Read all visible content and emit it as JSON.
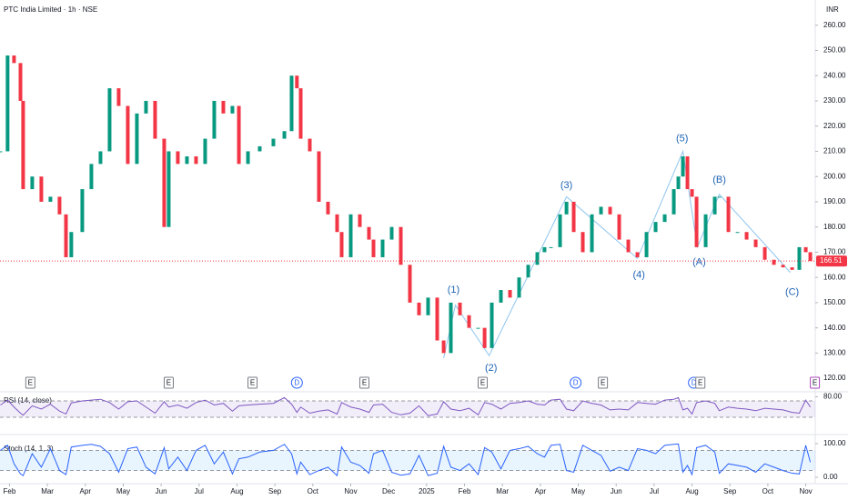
{
  "chart_data": [
    {
      "type": "candle",
      "title": "PTC India Limited · 1h · NSE",
      "currency": "INR",
      "up_color": "#089981",
      "down_color": "#f23645",
      "x": [
        -0.24,
        -0.05,
        0.12,
        0.29,
        0.36,
        0.6,
        0.84,
        1.08,
        1.32,
        1.49,
        1.63,
        1.92,
        2.16,
        2.4,
        2.64,
        2.88,
        3.12,
        3.36,
        3.6,
        3.84,
        4.08,
        4.2,
        4.44,
        4.68,
        4.92,
        5.16,
        5.4,
        5.64,
        5.88,
        6.05,
        6.29,
        6.6,
        6.96,
        7.25,
        7.44,
        7.58,
        7.68,
        7.92,
        8.16,
        8.4,
        8.64,
        8.76,
        9,
        9.24,
        9.48,
        9.6,
        9.84,
        10.08,
        10.32,
        10.56,
        10.8,
        11.04,
        11.28,
        11.45,
        11.64,
        11.88,
        12.12,
        12.36,
        12.53,
        12.72,
        12.96,
        13.2,
        13.44,
        13.68,
        13.92,
        14.11,
        14.28,
        14.52,
        14.69,
        14.88,
        15.12,
        15.36,
        15.6,
        15.84,
        16.08,
        16.32,
        16.56,
        16.8,
        17.04,
        17.28,
        17.52,
        17.64,
        17.76,
        17.88,
        18,
        18.12,
        18.36,
        18.6,
        18.72,
        18.96,
        19.2,
        19.44,
        19.68,
        19.92,
        20.16,
        20.4,
        20.64,
        20.83,
        21,
        21.12
      ],
      "values": [
        210,
        248,
        245,
        230,
        195,
        200,
        190,
        192,
        185,
        168,
        178,
        195,
        205,
        210,
        235,
        228,
        205,
        225,
        230,
        215,
        180,
        210,
        205,
        208,
        205,
        215,
        230,
        225,
        228,
        205,
        210,
        212,
        215,
        218,
        240,
        235,
        215,
        210,
        190,
        185,
        178,
        168,
        185,
        180,
        175,
        168,
        175,
        180,
        165,
        150,
        145,
        152,
        135,
        130,
        150,
        145,
        140,
        140,
        132,
        150,
        155,
        152,
        160,
        165,
        170,
        172,
        172,
        185,
        190,
        178,
        170,
        185,
        188,
        185,
        175,
        170,
        168,
        178,
        182,
        185,
        195,
        200,
        208,
        195,
        192,
        172,
        185,
        192,
        192,
        178,
        178,
        175,
        172,
        167,
        165,
        164,
        163,
        172,
        170,
        166.51
      ],
      "last": 166.51,
      "xlim": [
        -0.25,
        21.25
      ],
      "xticks": [
        {
          "value": 0,
          "label": "Feb"
        },
        {
          "value": 1,
          "label": "Mar"
        },
        {
          "value": 2,
          "label": "Apr"
        },
        {
          "value": 3,
          "label": "May"
        },
        {
          "value": 4,
          "label": "Jun"
        },
        {
          "value": 5,
          "label": "Jul"
        },
        {
          "value": 6,
          "label": "Aug"
        },
        {
          "value": 7,
          "label": "Sep"
        },
        {
          "value": 8,
          "label": "Oct"
        },
        {
          "value": 9,
          "label": "Nov"
        },
        {
          "value": 10,
          "label": "Dec"
        },
        {
          "value": 11,
          "label": "2025"
        },
        {
          "value": 12,
          "label": "Feb"
        },
        {
          "value": 13,
          "label": "Mar"
        },
        {
          "value": 14,
          "label": "Apr"
        },
        {
          "value": 15,
          "label": "May"
        },
        {
          "value": 16,
          "label": "Jun"
        },
        {
          "value": 17,
          "label": "Jul"
        },
        {
          "value": 18,
          "label": "Aug"
        },
        {
          "value": 19,
          "label": "Sep"
        },
        {
          "value": 20,
          "label": "Oct"
        },
        {
          "value": 21,
          "label": "Nov"
        }
      ],
      "ylim": [
        115,
        270
      ],
      "yticks": [
        {
          "value": 120,
          "label": "120.00"
        },
        {
          "value": 130,
          "label": "130.00"
        },
        {
          "value": 140,
          "label": "140.00"
        },
        {
          "value": 150,
          "label": "150.00"
        },
        {
          "value": 160,
          "label": "160.00"
        },
        {
          "value": 170,
          "label": "170.00"
        },
        {
          "value": 180,
          "label": "180.00"
        },
        {
          "value": 190,
          "label": "190.00"
        },
        {
          "value": 200,
          "label": "200.00"
        },
        {
          "value": 210,
          "label": "210.00"
        },
        {
          "value": 220,
          "label": "220.00"
        },
        {
          "value": 230,
          "label": "230.00"
        },
        {
          "value": 240,
          "label": "240.00"
        },
        {
          "value": 250,
          "label": "250.00"
        },
        {
          "value": 260,
          "label": "260.00"
        }
      ],
      "wave_color": "#8ec5f0",
      "wave_label_color": "#1e63b5",
      "wave_line": {
        "x": [
          11.45,
          11.76,
          12.65,
          14.69,
          16.56,
          17.76,
          18.14,
          18.72,
          20.59
        ],
        "y": [
          128,
          149,
          129,
          192,
          167.5,
          210,
          172,
          193,
          162
        ]
      },
      "wave_labels": [
        {
          "text": "(1)",
          "x": 11.71,
          "y": 155
        },
        {
          "text": "(2)",
          "x": 12.7,
          "y": 124
        },
        {
          "text": "(3)",
          "x": 14.69,
          "y": 196.5
        },
        {
          "text": "(4)",
          "x": 16.6,
          "y": 161
        },
        {
          "text": "(5)",
          "x": 17.74,
          "y": 215
        },
        {
          "text": "(A)",
          "x": 18.19,
          "y": 166
        },
        {
          "text": "(B)",
          "x": 18.72,
          "y": 198.6
        },
        {
          "text": "(C)",
          "x": 20.64,
          "y": 154
        }
      ],
      "events": [
        {
          "label": "E",
          "x": 0.55
        },
        {
          "label": "E",
          "x": 4.2
        },
        {
          "label": "E",
          "x": 6.41
        },
        {
          "label": "D",
          "x": 7.58
        },
        {
          "label": "E",
          "x": 9.36
        },
        {
          "label": "E",
          "x": 12.48
        },
        {
          "label": "D",
          "x": 14.93
        },
        {
          "label": "E",
          "x": 15.65
        },
        {
          "label": "D",
          "x": 18.05
        },
        {
          "label": "E",
          "x": 18.22
        },
        {
          "label": "E",
          "x": 21.24
        }
      ]
    },
    {
      "type": "line",
      "title": "RSI (14, close)",
      "band": [
        30,
        70
      ],
      "band_color": "#7e57c2",
      "ylim": [
        0,
        100
      ],
      "yticks": [
        {
          "value": 80,
          "label": "80.00"
        }
      ],
      "series": [
        {
          "color": "#7e57c2",
          "values": [
            60,
            72,
            55,
            40,
            35,
            58,
            50,
            62,
            45,
            38,
            65,
            70,
            72,
            74,
            66,
            50,
            68,
            70,
            55,
            40,
            68,
            55,
            60,
            52,
            66,
            72,
            60,
            64,
            45,
            58,
            60,
            62,
            64,
            78,
            62,
            42,
            55,
            40,
            45,
            48,
            38,
            66,
            55,
            50,
            42,
            60,
            62,
            42,
            36,
            40,
            58,
            34,
            38,
            68,
            50,
            46,
            52,
            36,
            66,
            62,
            50,
            64,
            66,
            70,
            62,
            60,
            72,
            74,
            50,
            46,
            70,
            64,
            60,
            48,
            50,
            48,
            66,
            64,
            62,
            72,
            74,
            78,
            48,
            52,
            38,
            66,
            70,
            64,
            46,
            55,
            52,
            50,
            46,
            52,
            50,
            48,
            42,
            40,
            72,
            55
          ]
        }
      ]
    },
    {
      "type": "line",
      "title": "Stoch (14, 1, 3)",
      "band": [
        20,
        80
      ],
      "band_color": "#2196f3",
      "ylim": [
        0,
        100
      ],
      "yticks": [
        {
          "value": 100,
          "label": "100.00"
        },
        {
          "value": 0,
          "label": "0.00"
        }
      ],
      "series": [
        {
          "color": "#2962ff",
          "values": [
            80,
            95,
            40,
            10,
            5,
            70,
            30,
            85,
            20,
            8,
            90,
            95,
            98,
            92,
            70,
            15,
            85,
            90,
            30,
            10,
            88,
            25,
            60,
            20,
            80,
            95,
            40,
            75,
            10,
            55,
            60,
            75,
            80,
            98,
            70,
            10,
            45,
            8,
            20,
            30,
            5,
            90,
            45,
            35,
            12,
            70,
            80,
            15,
            6,
            10,
            65,
            5,
            12,
            92,
            30,
            20,
            40,
            8,
            88,
            75,
            25,
            80,
            85,
            92,
            70,
            60,
            95,
            98,
            20,
            15,
            95,
            80,
            65,
            18,
            30,
            20,
            85,
            80,
            70,
            95,
            98,
            99,
            15,
            35,
            8,
            88,
            95,
            75,
            12,
            40,
            35,
            30,
            15,
            40,
            30,
            20,
            12,
            10,
            95,
            45
          ]
        }
      ]
    }
  ]
}
